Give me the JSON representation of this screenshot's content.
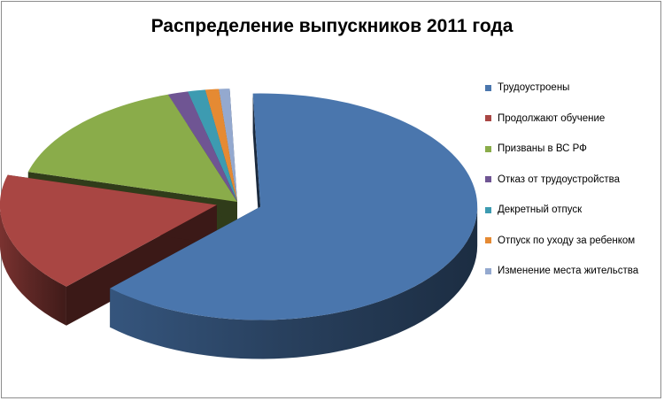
{
  "chart_data": {
    "type": "pie",
    "title": "Распределение выпускников 2011 года",
    "categories": [
      "Трудоустроены",
      "Продолжают обучение",
      "Призваны в ВС РФ",
      "Отказ от трудоустройства",
      "Декретный отпуск",
      "Отпуск по уходу за ребенком",
      "Изменение места жительства"
    ],
    "values": [
      62.5,
      17.0,
      15.5,
      1.5,
      1.3,
      1.0,
      0.8
    ],
    "colors": [
      "#4a76ad",
      "#a94643",
      "#8aac4a",
      "#6f5593",
      "#3d9bb1",
      "#e58a33",
      "#94a9cf"
    ],
    "exploded_slices": [
      0,
      1
    ],
    "legend_position": "right",
    "three_d": true
  }
}
